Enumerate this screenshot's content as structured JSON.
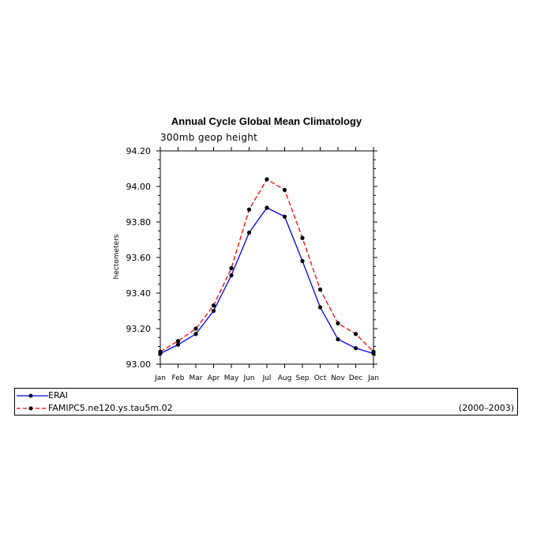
{
  "chart_data": {
    "type": "line",
    "title": "Annual Cycle Global Mean Climatology",
    "subtitle": "300mb  geop  height",
    "ylabel": "hectometers",
    "xlabel": "",
    "ylim": [
      93.0,
      94.2
    ],
    "y_ticks": [
      "93.00",
      "93.20",
      "93.40",
      "93.60",
      "93.80",
      "94.00",
      "94.20"
    ],
    "categories": [
      "Jan",
      "Feb",
      "Mar",
      "Apr",
      "May",
      "Jun",
      "Jul",
      "Aug",
      "Sep",
      "Oct",
      "Nov",
      "Dec",
      "Jan"
    ],
    "series": [
      {
        "name": "ERAI",
        "color": "#0000ff",
        "style": "solid",
        "values": [
          93.06,
          93.11,
          93.17,
          93.3,
          93.5,
          93.74,
          93.88,
          93.83,
          93.58,
          93.32,
          93.14,
          93.09,
          93.06
        ]
      },
      {
        "name": "FAMIPC5.ne120.ys.tau5m.02",
        "color": "#ff0000",
        "style": "dashed",
        "values": [
          93.07,
          93.13,
          93.2,
          93.33,
          93.54,
          93.87,
          94.04,
          93.98,
          93.71,
          93.42,
          93.23,
          93.17,
          93.07
        ]
      }
    ],
    "grid": false,
    "legend_position": "bottom"
  },
  "legend": {
    "period": "(2000–2003)"
  }
}
